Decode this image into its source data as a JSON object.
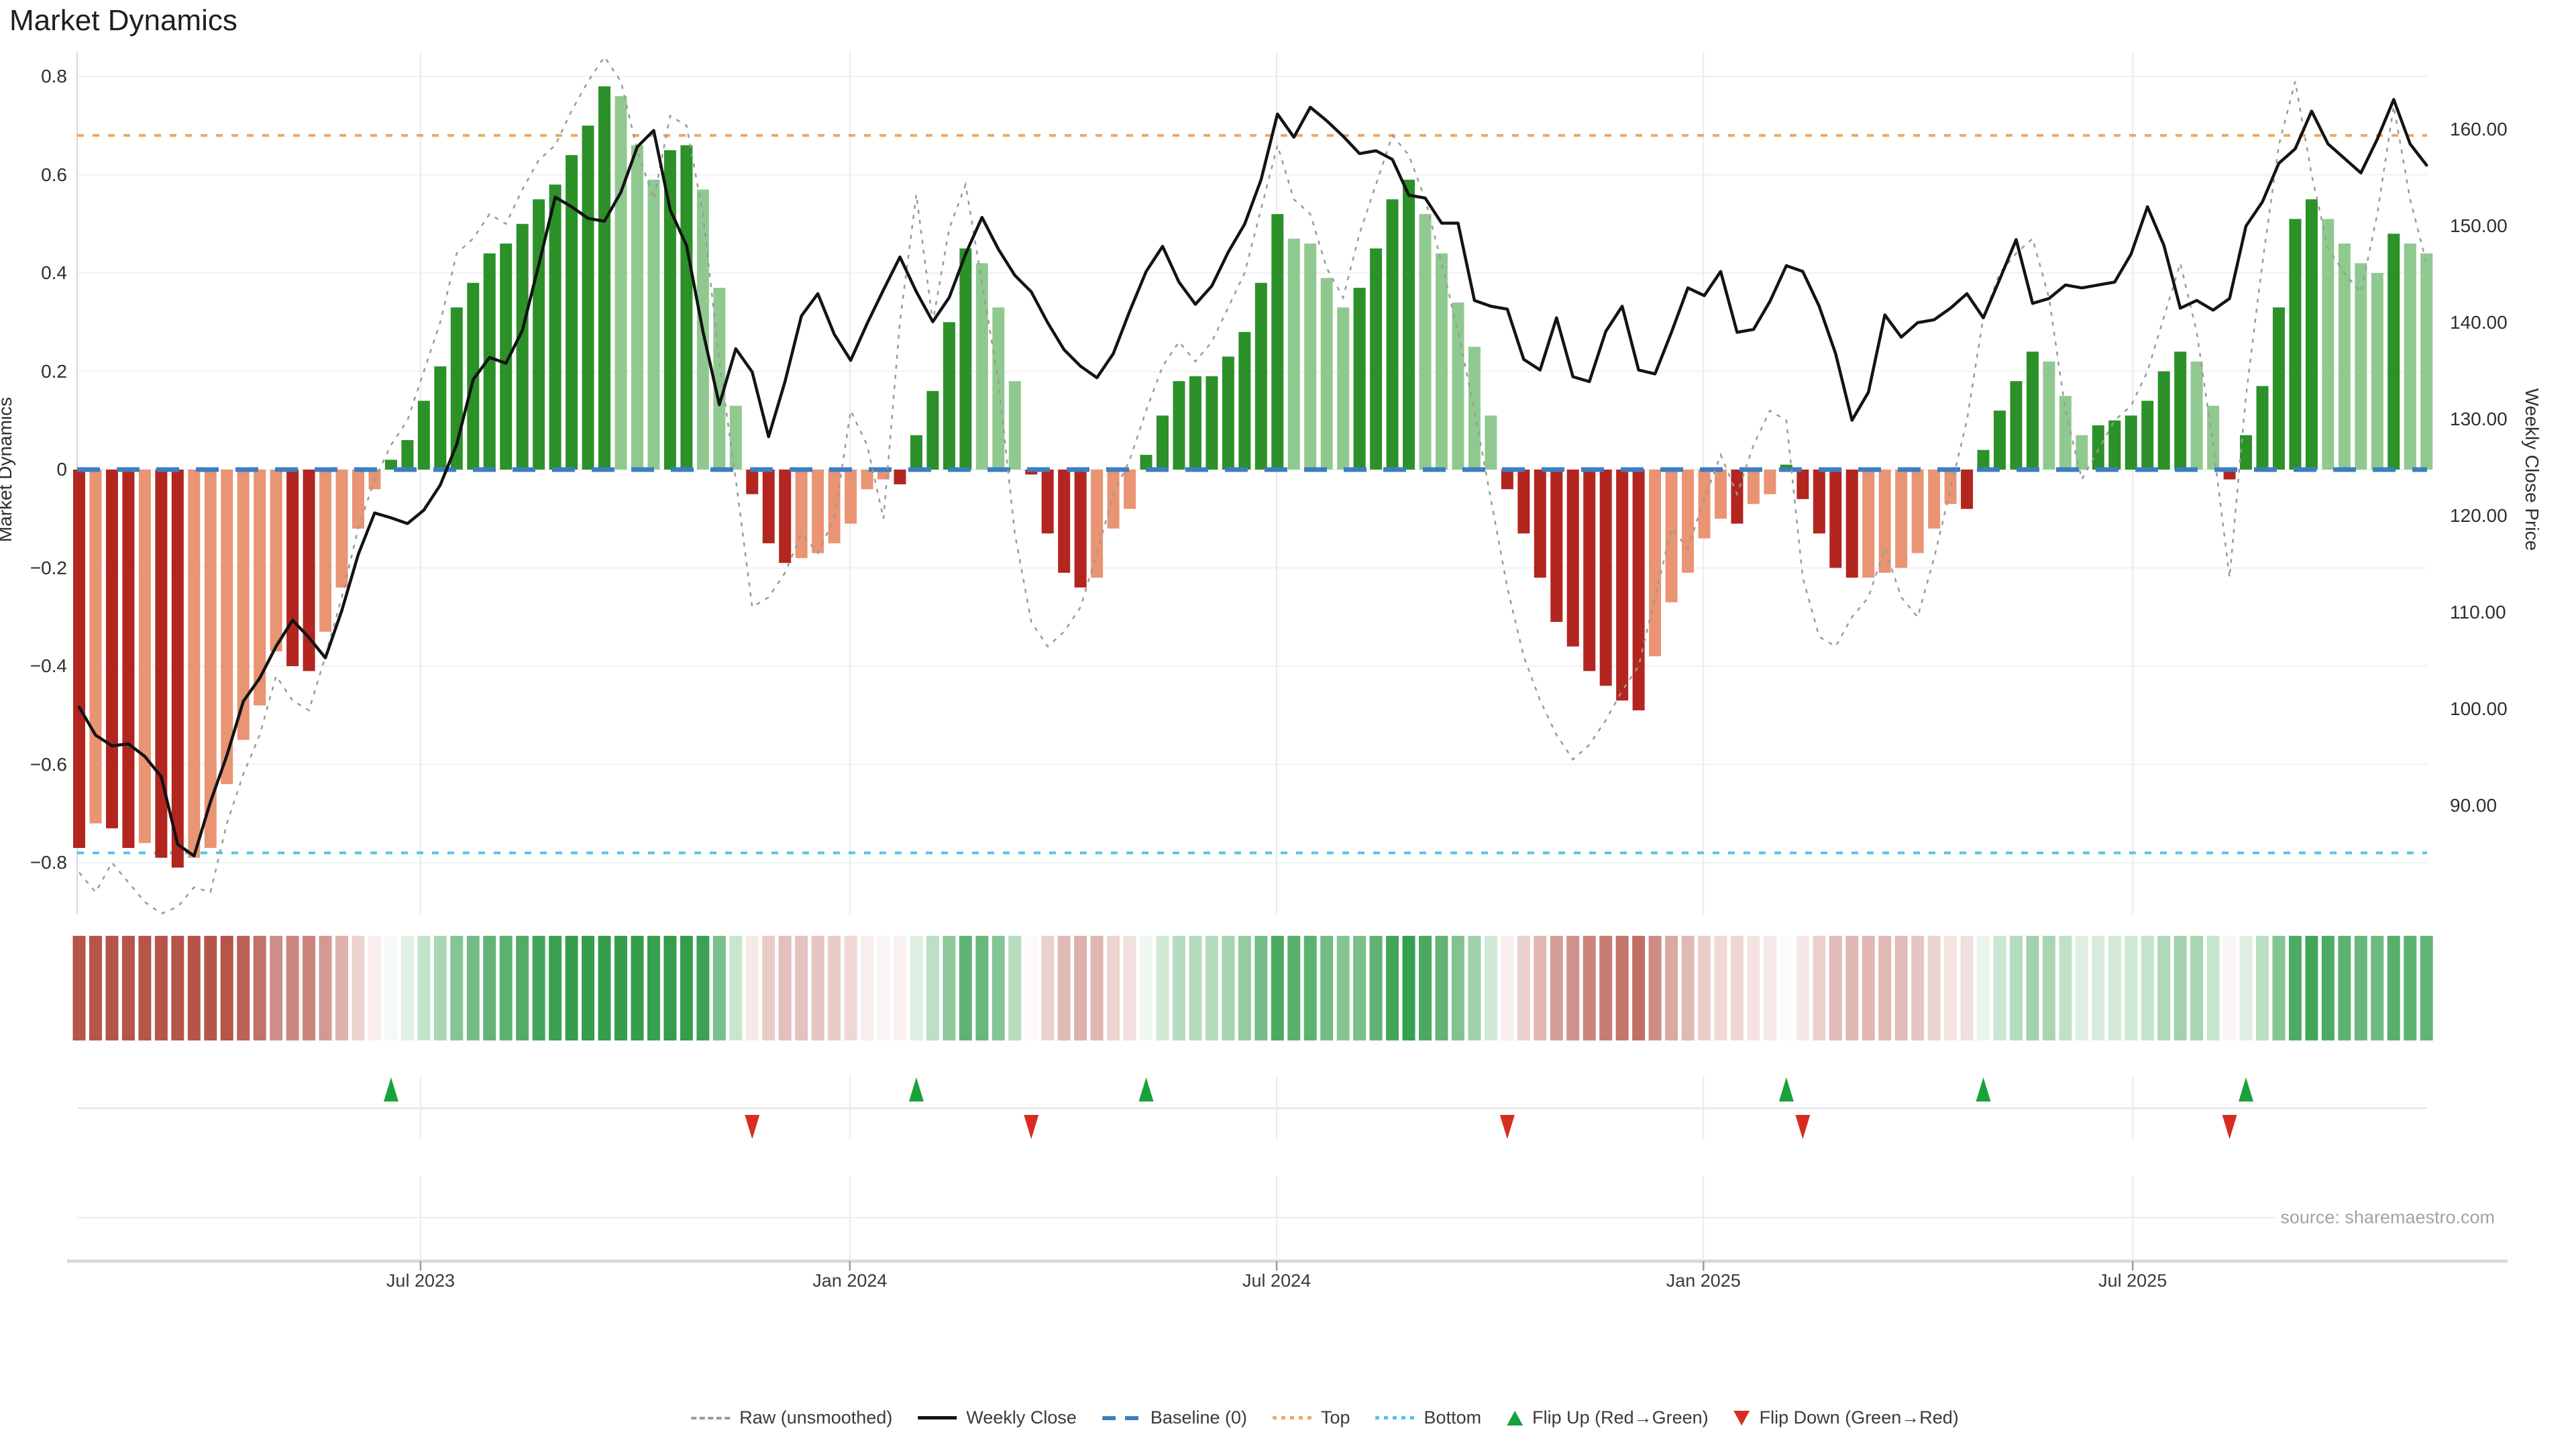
{
  "title": "Market Dynamics",
  "source": "source: sharemaestro.com",
  "axes": {
    "left": {
      "title": "Market Dynamics",
      "tick_labels": [
        "0.8",
        "0.6",
        "0.4",
        "0.2",
        "0",
        "−0.2",
        "−0.4",
        "−0.6",
        "−0.8"
      ],
      "tick_values": [
        0.8,
        0.6,
        0.4,
        0.2,
        0,
        -0.2,
        -0.4,
        -0.6,
        -0.8
      ]
    },
    "right": {
      "title": "Weekly Close Price",
      "tick_labels": [
        "160.00",
        "150.00",
        "140.00",
        "130.00",
        "120.00",
        "110.00",
        "100.00",
        "90.00"
      ],
      "tick_values": [
        160,
        150,
        140,
        130,
        120,
        110,
        100,
        90
      ]
    },
    "x": {
      "tick_labels": [
        "Jul 2023",
        "Jan 2024",
        "Jul 2024",
        "Jan 2025",
        "Jul 2025"
      ],
      "tick_weeks": [
        21.8,
        47.95,
        73.95,
        99.95,
        126.1
      ]
    }
  },
  "legend": {
    "items": [
      {
        "label": "Raw (unsmoothed)",
        "swatch": "dash-gray"
      },
      {
        "label": "Weekly Close",
        "swatch": "solid-black"
      },
      {
        "label": "Baseline (0)",
        "swatch": "dash-blue"
      },
      {
        "label": "Top",
        "swatch": "dot-orange"
      },
      {
        "label": "Bottom",
        "swatch": "dot-cyan"
      },
      {
        "label": "Flip Up (Red→Green)",
        "swatch": "tri-up"
      },
      {
        "label": "Flip Down (Green→Red)",
        "swatch": "tri-down"
      }
    ]
  },
  "colors": {
    "bar_pos_rising": "#2b9128",
    "bar_pos_falling": "#90c98f",
    "bar_neg_falling": "#b3251f",
    "bar_neg_rising": "#e99472",
    "raw_line": "#9a9a9a",
    "close_line": "#131313",
    "baseline": "#3c7ec2",
    "top_line": "#f4a55c",
    "bottom_line": "#4dc6ea",
    "flip_up": "#18a23a",
    "flip_down": "#d62d20",
    "grid_h": "#f0f1f6",
    "grid_v": "#e9e9ef",
    "axis_line": "#d8d8dc",
    "strip_red_base": [
      182,
      85,
      74
    ],
    "strip_green_base": [
      52,
      158,
      77
    ]
  },
  "chart_data": {
    "type": "bar",
    "subtype": "oscillator-bars + price line + raw dotted line + heatmap strip + flip markers",
    "title": "Market Dynamics",
    "xlabel": "",
    "ylabel_left": "Market Dynamics",
    "ylabel_right": "Weekly Close Price",
    "ylim_left": [
      -0.9,
      0.85
    ],
    "ylim_right_ticks": [
      90,
      160
    ],
    "n_weeks": 144,
    "baseline": 0,
    "top_threshold": 0.68,
    "bottom_threshold": -0.78,
    "flip_up_weeks": [
      20,
      52,
      66,
      105,
      117,
      133
    ],
    "flip_down_weeks": [
      42,
      59,
      88,
      106,
      132
    ],
    "series": [
      {
        "name": "Market Dynamics (smoothed bars)",
        "axis": "left",
        "values": [
          -0.77,
          -0.72,
          -0.73,
          -0.77,
          -0.76,
          -0.79,
          -0.81,
          -0.79,
          -0.77,
          -0.64,
          -0.55,
          -0.48,
          -0.37,
          -0.4,
          -0.41,
          -0.33,
          -0.24,
          -0.12,
          -0.04,
          0.02,
          0.06,
          0.14,
          0.21,
          0.33,
          0.38,
          0.44,
          0.46,
          0.5,
          0.55,
          0.58,
          0.64,
          0.7,
          0.78,
          0.76,
          0.66,
          0.59,
          0.65,
          0.66,
          0.57,
          0.37,
          0.13,
          -0.05,
          -0.15,
          -0.19,
          -0.18,
          -0.17,
          -0.15,
          -0.11,
          -0.04,
          -0.02,
          -0.03,
          0.07,
          0.16,
          0.3,
          0.45,
          0.42,
          0.33,
          0.18,
          -0.01,
          -0.13,
          -0.21,
          -0.24,
          -0.22,
          -0.12,
          -0.08,
          0.03,
          0.11,
          0.18,
          0.19,
          0.19,
          0.23,
          0.28,
          0.38,
          0.52,
          0.47,
          0.46,
          0.39,
          0.33,
          0.37,
          0.45,
          0.55,
          0.59,
          0.52,
          0.44,
          0.34,
          0.25,
          0.11,
          -0.04,
          -0.13,
          -0.22,
          -0.31,
          -0.36,
          -0.41,
          -0.44,
          -0.47,
          -0.49,
          -0.38,
          -0.27,
          -0.21,
          -0.14,
          -0.1,
          -0.11,
          -0.07,
          -0.05,
          0.01,
          -0.06,
          -0.13,
          -0.2,
          -0.22,
          -0.22,
          -0.21,
          -0.2,
          -0.17,
          -0.12,
          -0.07,
          -0.08,
          0.04,
          0.12,
          0.18,
          0.24,
          0.22,
          0.15,
          0.07,
          0.09,
          0.1,
          0.11,
          0.14,
          0.2,
          0.24,
          0.22,
          0.13,
          -0.02,
          0.07,
          0.17,
          0.33,
          0.51,
          0.55,
          0.51,
          0.46,
          0.42,
          0.4,
          0.48,
          0.46,
          0.44
        ]
      },
      {
        "name": "Raw (unsmoothed)",
        "axis": "left",
        "values": [
          -0.82,
          -0.86,
          -0.8,
          -0.84,
          -0.88,
          -0.93,
          -0.89,
          -0.85,
          -0.86,
          -0.72,
          -0.62,
          -0.54,
          -0.42,
          -0.47,
          -0.49,
          -0.38,
          -0.26,
          -0.12,
          -0.02,
          0.05,
          0.1,
          0.2,
          0.3,
          0.44,
          0.47,
          0.52,
          0.5,
          0.57,
          0.63,
          0.66,
          0.73,
          0.79,
          0.84,
          0.79,
          0.65,
          0.55,
          0.72,
          0.7,
          0.52,
          0.22,
          -0.02,
          -0.28,
          -0.26,
          -0.21,
          -0.13,
          -0.17,
          -0.1,
          0.12,
          0.05,
          -0.1,
          0.3,
          0.56,
          0.3,
          0.49,
          0.58,
          0.38,
          0.18,
          -0.13,
          -0.31,
          -0.36,
          -0.33,
          -0.28,
          -0.17,
          -0.05,
          0.02,
          0.12,
          0.21,
          0.26,
          0.22,
          0.26,
          0.33,
          0.4,
          0.53,
          0.66,
          0.55,
          0.52,
          0.41,
          0.35,
          0.48,
          0.58,
          0.68,
          0.64,
          0.55,
          0.42,
          0.28,
          0.12,
          -0.06,
          -0.24,
          -0.38,
          -0.47,
          -0.54,
          -0.59,
          -0.56,
          -0.51,
          -0.45,
          -0.4,
          -0.26,
          -0.12,
          -0.16,
          -0.06,
          0.03,
          -0.05,
          0.05,
          0.12,
          0.1,
          -0.22,
          -0.34,
          -0.36,
          -0.3,
          -0.26,
          -0.16,
          -0.26,
          -0.3,
          -0.18,
          -0.04,
          0.1,
          0.31,
          0.4,
          0.44,
          0.47,
          0.35,
          0.12,
          -0.02,
          0.04,
          0.1,
          0.13,
          0.2,
          0.31,
          0.42,
          0.28,
          0.05,
          -0.22,
          0.15,
          0.42,
          0.66,
          0.79,
          0.6,
          0.45,
          0.4,
          0.36,
          0.52,
          0.74,
          0.55,
          0.42
        ]
      },
      {
        "name": "Weekly Close",
        "axis": "right",
        "values": [
          100.2,
          97.3,
          96.2,
          96.4,
          95.1,
          93.0,
          86.0,
          84.8,
          90.4,
          95.2,
          100.8,
          103.2,
          106.5,
          109.2,
          107.4,
          105.3,
          110.2,
          116.0,
          120.3,
          119.8,
          119.2,
          120.6,
          123.2,
          127.4,
          134.1,
          136.4,
          135.8,
          139.2,
          146.0,
          153.0,
          152.0,
          150.8,
          150.5,
          153.5,
          158.2,
          159.9,
          151.7,
          148.0,
          139.1,
          131.5,
          137.3,
          134.9,
          128.2,
          133.9,
          140.7,
          143.0,
          138.8,
          136.1,
          139.9,
          143.4,
          146.8,
          143.2,
          140.1,
          142.6,
          147.1,
          150.9,
          147.6,
          144.9,
          143.2,
          140.0,
          137.2,
          135.5,
          134.3,
          136.8,
          141.2,
          145.3,
          147.9,
          144.2,
          141.9,
          143.8,
          147.3,
          150.2,
          154.8,
          161.6,
          159.2,
          162.3,
          160.9,
          159.3,
          157.5,
          157.8,
          156.9,
          153.2,
          152.9,
          150.3,
          150.3,
          142.3,
          141.7,
          141.4,
          136.2,
          135.1,
          140.5,
          134.4,
          133.9,
          139.1,
          141.7,
          135.1,
          134.7,
          139.0,
          143.6,
          142.8,
          145.3,
          139.0,
          139.3,
          142.2,
          145.9,
          145.3,
          141.7,
          136.8,
          129.9,
          132.8,
          140.8,
          138.5,
          140.0,
          140.3,
          141.5,
          143.0,
          140.5,
          144.5,
          148.6,
          142.0,
          142.5,
          143.9,
          143.6,
          143.9,
          144.2,
          147.1,
          152.0,
          148.0,
          141.5,
          142.3,
          141.3,
          142.5,
          150.0,
          152.5,
          156.5,
          158.0,
          161.9,
          158.5,
          157.0,
          155.5,
          159.0,
          163.1,
          158.5,
          156.3
        ]
      }
    ],
    "legend_position": "bottom center",
    "grid": true
  }
}
